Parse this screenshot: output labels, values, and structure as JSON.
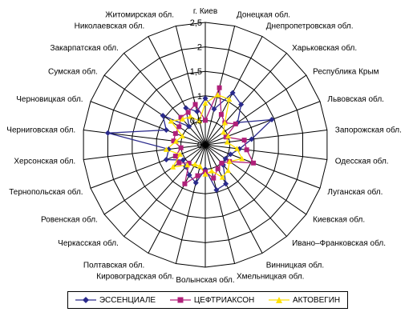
{
  "chart_data": {
    "type": "radar",
    "title": "",
    "rmax": 2.5,
    "ticks": [
      {
        "value": 0,
        "label": "0"
      },
      {
        "value": 0.5,
        "label": "0,5"
      },
      {
        "value": 1,
        "label": "1"
      },
      {
        "value": 1.5,
        "label": "1,5"
      },
      {
        "value": 2,
        "label": "2"
      },
      {
        "value": 2.5,
        "label": "2,5"
      }
    ],
    "grid": true,
    "legend_position": "bottom",
    "categories": [
      "г. Киев",
      "Донецкая обл.",
      "Днепропетровская обл.",
      "Харьковская обл.",
      "Республика Крым",
      "Львовская обл.",
      "Запорожская обл.",
      "Одесская обл.",
      "Луганская обл.",
      "Киевская обл.",
      "Ивано–Франковская обл.",
      "Винницкая обл.",
      "Хмельницкая обл.",
      "Волынская обл.",
      "Кировоградская обл.",
      "Полтавская обл.",
      "Черкасская обл.",
      "Ровенская обл.",
      "Тернопольская обл.",
      "Херсонская обл.",
      "Черниговская обл.",
      "Черновицкая обл.",
      "Сумская обл.",
      "Закарпатская обл.",
      "Николаевская обл.",
      "Житомирская обл."
    ],
    "series": [
      {
        "name": "ЭССЕНЦИАЛЕ",
        "color": "#2a2a8c",
        "marker": "diamond",
        "values": [
          0.95,
          0.75,
          1.2,
          1.1,
          0.8,
          1.45,
          0.95,
          0.7,
          0.55,
          0.5,
          0.55,
          0.9,
          0.95,
          0.5,
          0.8,
          0.7,
          0.6,
          0.55,
          0.85,
          0.75,
          2.0,
          0.85,
          1.05,
          0.5,
          0.85,
          0.7
        ]
      },
      {
        "name": "ЦЕФТРИАКСОН",
        "color": "#b0207a",
        "marker": "square",
        "values": [
          0.5,
          1.2,
          0.7,
          0.6,
          0.75,
          0.45,
          0.8,
          0.85,
          1.05,
          0.6,
          0.5,
          0.55,
          0.7,
          0.55,
          0.65,
          0.9,
          0.5,
          0.65,
          0.65,
          0.5,
          0.65,
          0.65,
          0.65,
          0.75,
          0.75,
          0.85
        ]
      },
      {
        "name": "АКТОВЕГИН",
        "color": "#ffe100",
        "marker": "triangle",
        "values": [
          0.85,
          1.05,
          1.05,
          0.6,
          0.45,
          0.5,
          0.45,
          0.65,
          0.8,
          0.6,
          0.7,
          0.75,
          0.55,
          0.6,
          0.45,
          0.45,
          0.55,
          0.8,
          0.55,
          0.8,
          0.6,
          0.5,
          0.85,
          0.7,
          0.65,
          0.5
        ]
      }
    ]
  }
}
